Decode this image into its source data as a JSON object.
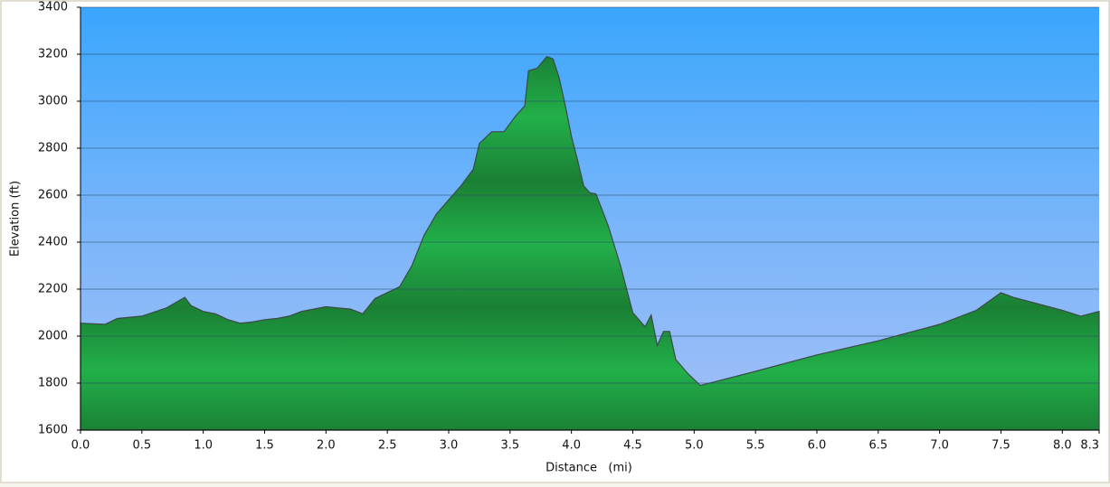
{
  "chart_data": {
    "type": "area",
    "xlabel": "Distance   (mi)",
    "ylabel": "Elevation (ft)",
    "x": [
      0,
      0.2,
      0.3,
      0.5,
      0.7,
      0.85,
      0.9,
      1.0,
      1.1,
      1.2,
      1.3,
      1.4,
      1.5,
      1.6,
      1.7,
      1.8,
      2.0,
      2.2,
      2.3,
      2.4,
      2.6,
      2.7,
      2.8,
      2.9,
      3.0,
      3.1,
      3.2,
      3.25,
      3.35,
      3.45,
      3.55,
      3.62,
      3.65,
      3.72,
      3.8,
      3.85,
      3.9,
      3.95,
      4.0,
      4.05,
      4.1,
      4.15,
      4.2,
      4.3,
      4.4,
      4.5,
      4.6,
      4.65,
      4.7,
      4.75,
      4.8,
      4.85,
      4.95,
      5.05,
      5.2,
      5.5,
      6.0,
      6.5,
      7.0,
      7.3,
      7.5,
      7.6,
      8.0,
      8.15,
      8.3
    ],
    "values": [
      2055,
      2050,
      2075,
      2085,
      2120,
      2165,
      2130,
      2105,
      2095,
      2070,
      2055,
      2060,
      2070,
      2075,
      2085,
      2105,
      2125,
      2115,
      2095,
      2160,
      2210,
      2300,
      2430,
      2520,
      2580,
      2640,
      2710,
      2820,
      2870,
      2870,
      2940,
      2980,
      3130,
      3140,
      3190,
      3180,
      3100,
      2980,
      2850,
      2750,
      2640,
      2610,
      2605,
      2470,
      2300,
      2100,
      2040,
      2090,
      1960,
      2020,
      2020,
      1900,
      1840,
      1790,
      1810,
      1850,
      1920,
      1980,
      2050,
      2110,
      2185,
      2165,
      2110,
      2085,
      2105
    ],
    "color": "#1fa843",
    "xlim": [
      0,
      8.3
    ],
    "ylim": [
      1600,
      3400
    ],
    "xticks": [
      {
        "value": 0,
        "label": "0.0"
      },
      0.5,
      {
        "value": 1,
        "label": "1.0"
      },
      1.5,
      {
        "value": 2,
        "label": "2.0"
      },
      2.5,
      {
        "value": 3,
        "label": "3.0"
      },
      3.5,
      {
        "value": 4,
        "label": "4.0"
      },
      4.5,
      {
        "value": 5,
        "label": "5.0"
      },
      5.5,
      {
        "value": 6,
        "label": "6.0"
      },
      6.5,
      {
        "value": 7,
        "label": "7.0"
      },
      7.5,
      {
        "value": 8,
        "label": "8.0"
      },
      8.3
    ],
    "yticks": [
      1600,
      1800,
      2000,
      2200,
      2400,
      2600,
      2800,
      3000,
      3200,
      3400
    ],
    "grid": true
  }
}
